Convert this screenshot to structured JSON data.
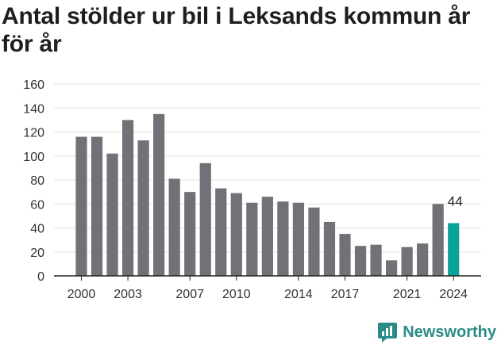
{
  "title": "Antal stölder ur bil i Leksands kommun år för år",
  "brand": {
    "name": "Newsworthy",
    "icon": "newsworthy-logo-icon",
    "color": "#2a8c87"
  },
  "colors": {
    "bar": "#737177",
    "highlight": "#0aa39a",
    "grid": "#e3e3e3",
    "axis": "#222222"
  },
  "chart_data": {
    "type": "bar",
    "title": "Antal stölder ur bil i Leksands kommun år för år",
    "xlabel": "",
    "ylabel": "",
    "ylim": [
      0,
      160
    ],
    "yticks": [
      0,
      20,
      40,
      60,
      80,
      100,
      120,
      140,
      160
    ],
    "categories": [
      "2000",
      "2001",
      "2002",
      "2003",
      "2004",
      "2005",
      "2006",
      "2007",
      "2008",
      "2009",
      "2010",
      "2011",
      "2012",
      "2013",
      "2014",
      "2015",
      "2016",
      "2017",
      "2018",
      "2019",
      "2020",
      "2021",
      "2022",
      "2023",
      "2024"
    ],
    "xtick_labels": [
      "2000",
      "2003",
      "2007",
      "2010",
      "2014",
      "2017",
      "2021",
      "2024"
    ],
    "values": [
      116,
      116,
      102,
      130,
      113,
      135,
      81,
      70,
      94,
      73,
      69,
      61,
      66,
      62,
      61,
      57,
      45,
      35,
      25,
      26,
      13,
      24,
      27,
      60,
      44
    ],
    "highlight_category": "2024",
    "data_labels": [
      {
        "category": "2024",
        "text": "44"
      }
    ],
    "grid": true
  }
}
